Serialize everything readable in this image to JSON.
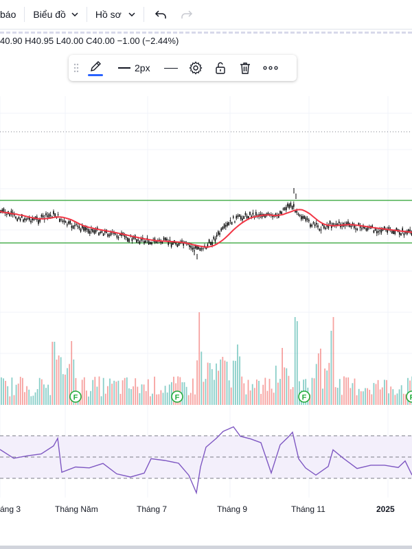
{
  "toolbar": {
    "alerts_label": "báo",
    "chart_menu_label": "Biểu đồ",
    "profile_menu_label": "Hồ sơ",
    "undo_icon": "undo-icon",
    "redo_icon": "redo-icon"
  },
  "legend": {
    "open": "40.90",
    "high": "H40.95",
    "low": "L40.00",
    "close": "C40.00",
    "change": "−1.00 (−2.44%)"
  },
  "drawing_toolbar": {
    "handle_icon": "drag-handle-icon",
    "pencil_icon": "pencil-icon",
    "line_width_label": "2px",
    "line_style_icon": "line-style-icon",
    "settings_icon": "gear-icon",
    "lock_icon": "unlock-icon",
    "delete_icon": "trash-icon",
    "more_icon": "more-icon",
    "accent_color": "#2962ff"
  },
  "xaxis": {
    "labels": [
      "áng 3",
      "Tháng Năm",
      "Tháng 7",
      "Tháng 9",
      "Tháng 11",
      "2025"
    ]
  },
  "events": {
    "marker_label": "F"
  },
  "colors": {
    "channel_line": "#4caf50",
    "moving_average": "#f23645",
    "candles": "#000000",
    "volume_up": "#26a69a",
    "volume_down": "#ef5350",
    "rsi_line": "#7e57c2",
    "rsi_band_fill": "#f3effb"
  }
}
